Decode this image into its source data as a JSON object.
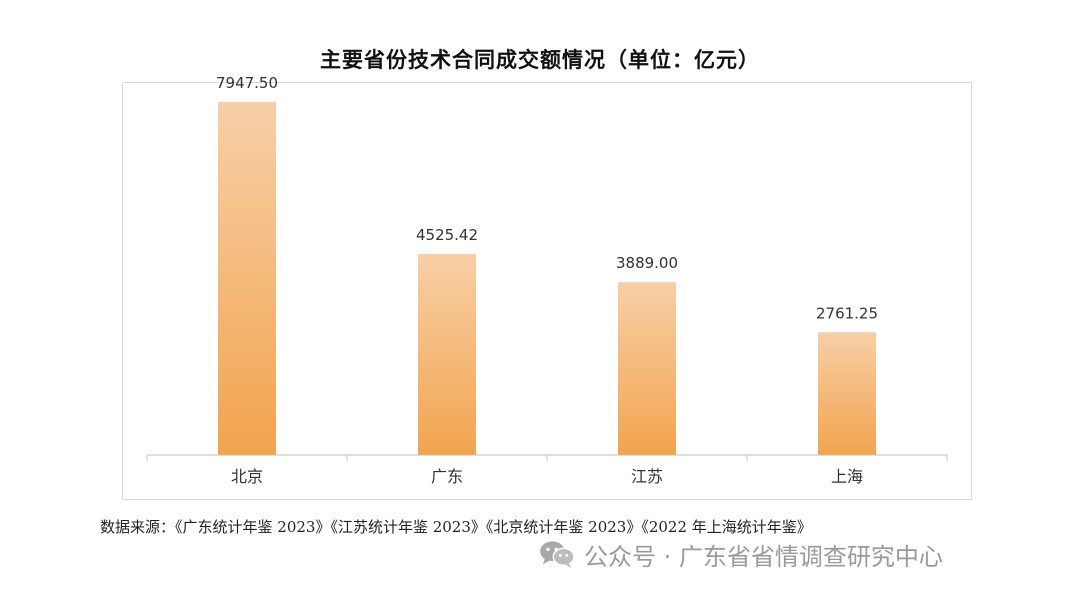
{
  "chart_data": {
    "type": "bar",
    "title": "主要省份技术合同成交额情况（单位：亿元）",
    "categories": [
      "北京",
      "广东",
      "江苏",
      "上海"
    ],
    "values": [
      7947.5,
      4525.42,
      3889.0,
      2761.25
    ],
    "value_labels": [
      "7947.50",
      "4525.42",
      "3889.00",
      "2761.25"
    ],
    "ylim": [
      0,
      9000
    ],
    "grid": false,
    "legend": "none",
    "bar_color_top": "#f7cfa6",
    "bar_color_bottom": "#f2a44e"
  },
  "source": "数据来源：《广东统计年鉴 2023》《江苏统计年鉴 2023》《北京统计年鉴 2023》《2022 年上海统计年鉴》",
  "watermark": {
    "icon": "wechat-icon",
    "text": "公众号 · 广东省省情调查研究中心"
  }
}
